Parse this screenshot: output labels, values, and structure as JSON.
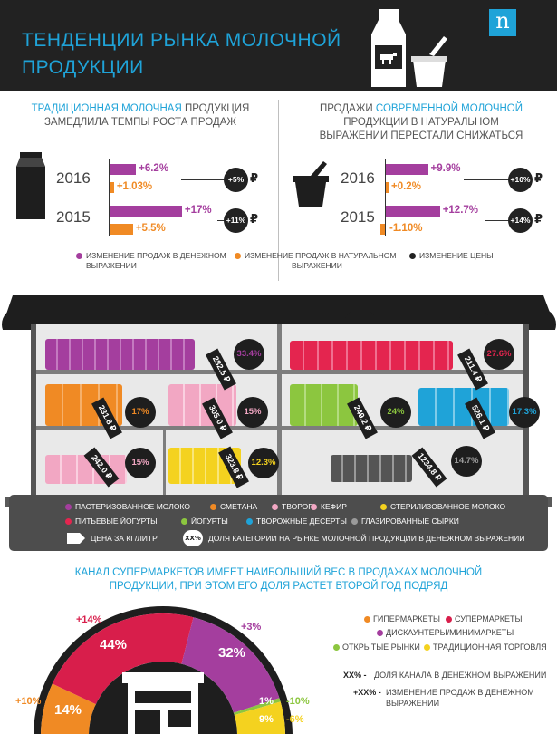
{
  "header": {
    "title_line1": "ТЕНДЕНЦИИ РЫНКА МОЛОЧНОЙ",
    "title_line2": "ПРОДУКЦИИ",
    "logo": "n",
    "colors": {
      "background": "#222222",
      "accent": "#1fa3d8"
    }
  },
  "traditional": {
    "heading_line1_pre": "ТРАДИЦИОННАЯ",
    "heading_line1_hl": "МОЛОЧНАЯ",
    "heading_line1_post": "ПРОДУКЦИЯ",
    "heading_line2": "ЗАМЕДЛИЛА ТЕМПЫ РОСТА ПРОДАЖ",
    "icon": "milk-carton-icon",
    "rows": [
      {
        "year": "2016",
        "value_change": "+6.2%",
        "volume_change": "+1.03%",
        "price_change": "+5%"
      },
      {
        "year": "2015",
        "value_change": "+17%",
        "volume_change": "+5.5%",
        "price_change": "+11%"
      }
    ]
  },
  "modern": {
    "heading_line1_pre": "ПРОДАЖИ",
    "heading_line1_hl": "СОВРЕМЕННОЙ МОЛОЧНОЙ",
    "heading_line2": "ПРОДУКЦИИ В НАТУРАЛЬНОМ",
    "heading_line3": "ВЫРАЖЕНИИ ПЕРЕСТАЛИ СНИЖАТЬСЯ",
    "icon": "yogurt-cup-icon",
    "rows": [
      {
        "year": "2016",
        "value_change": "+9.9%",
        "volume_change": "+0.2%",
        "price_change": "+10%"
      },
      {
        "year": "2015",
        "value_change": "+12.7%",
        "volume_change": "-1.10%",
        "price_change": "+14%"
      }
    ]
  },
  "currency": "₽",
  "legend_top": [
    {
      "label_line1": "ИЗМЕНЕНИЕ ПРОДАЖ В ДЕНЕЖНОМ",
      "label_line2": "ВЫРАЖЕНИИ",
      "color": "#a43e9e"
    },
    {
      "label_line1": "ИЗМЕНЕНИЕ ПРОДАЖ В НАТУРАЛЬНОМ",
      "label_line2": "ВЫРАЖЕНИИ",
      "color": "#f08a24"
    },
    {
      "label_line1": "ИЗМЕНЕНИЕ ЦЕНЫ",
      "label_line2": "",
      "color": "#222222"
    }
  ],
  "store": {
    "categories": [
      {
        "name": "ПАСТЕРИЗОВАННОЕ МОЛОКО",
        "price": "282.5 ₽",
        "share": "33.4%",
        "color": "#a43e9e"
      },
      {
        "name": "ПИТЬЕВЫЕ ЙОГУРТЫ",
        "price": "211.4 ₽",
        "share": "27.6%",
        "color": "#e4254f"
      },
      {
        "name": "СМЕТАНА",
        "price": "231.8 ₽",
        "share": "17%",
        "color": "#f08a24"
      },
      {
        "name": "ТВОРОГ",
        "price": "305.0 ₽",
        "share": "15%",
        "color": "#f2a7c3"
      },
      {
        "name": "ЙОГУРТЫ",
        "price": "249.2 ₽",
        "share": "24%",
        "color": "#8cc63f"
      },
      {
        "name": "ТВОРОЖНЫЕ ДЕСЕРТЫ",
        "price": "526.1 ₽",
        "share": "17.3%",
        "color": "#1fa3d8"
      },
      {
        "name": "КЕФИР",
        "price": "242.0 ₽",
        "share": "15%",
        "color": "#f2a7c3"
      },
      {
        "name": "СТЕРИЛИЗОВАННОЕ МОЛОКО",
        "price": "323.8 ₽",
        "share": "12.3%",
        "color": "#f4d21f"
      },
      {
        "name": "ГЛАЗИРОВАННЫЕ СЫРКИ",
        "price": "1234.8 ₽",
        "share": "14.7%",
        "color": "#9a9a9a"
      }
    ],
    "legend": [
      {
        "label": "ПАСТЕРИЗОВАННОЕ МОЛОКО",
        "color": "#a43e9e"
      },
      {
        "label": "СМЕТАНА",
        "color": "#f08a24"
      },
      {
        "label": "ТВОРОГ",
        "color": "#f2a7c3"
      },
      {
        "label": "КЕФИР",
        "color": "#f2a7c3"
      },
      {
        "label": "СТЕРИЛИЗОВАННОЕ МОЛОКО",
        "color": "#f4d21f"
      },
      {
        "label": "ПИТЬЕВЫЕ ЙОГУРТЫ",
        "color": "#e4254f"
      },
      {
        "label": "ЙОГУРТЫ",
        "color": "#8cc63f"
      },
      {
        "label": "ТВОРОЖНЫЕ ДЕСЕРТЫ",
        "color": "#1fa3d8"
      },
      {
        "label": "ГЛАЗИРОВАННЫЕ СЫРКИ",
        "color": "#9a9a9a"
      }
    ],
    "price_legend": "ЦЕНА ЗА КГ/ЛИТР",
    "share_marker": "XX%",
    "share_legend": "ДОЛЯ КАТЕГОРИИ НА РЫНКЕ МОЛОЧНОЙ ПРОДУКЦИИ В ДЕНЕЖНОМ ВЫРАЖЕНИИ"
  },
  "channels": {
    "heading_line1": "КАНАЛ СУПЕРМАРКЕТОВ ИМЕЕТ НАИБОЛЬШИЙ ВЕС В ПРОДАЖАХ МОЛОЧНОЙ",
    "heading_line2": "ПРОДУКЦИИ, ПРИ ЭТОМ ЕГО ДОЛЯ РАСТЕТ ВТОРОЙ ГОД ПОДРЯД",
    "segments": [
      {
        "name": "ГИПЕРМАРКЕТЫ",
        "share": "14%",
        "change": "+10%",
        "value": 14,
        "color": "#f08a24"
      },
      {
        "name": "СУПЕРМАРКЕТЫ",
        "share": "44%",
        "change": "+14%",
        "value": 44,
        "color": "#d81e4b"
      },
      {
        "name": "ДИСКАУНТЕРЫ/МИНИМАРКЕТЫ",
        "share": "32%",
        "change": "+3%",
        "value": 32,
        "color": "#a43e9e"
      },
      {
        "name": "ОТКРЫТЫЕ РЫНКИ",
        "share": "1%",
        "change": "-10%",
        "value": 1,
        "color": "#8cc63f"
      },
      {
        "name": "ТРАДИЦИОННАЯ ТОРГОВЛЯ",
        "share": "9%",
        "change": "-6%",
        "value": 9,
        "color": "#f4d21f"
      }
    ],
    "key_share_marker": "XX% -",
    "key_share_text": "ДОЛЯ КАНАЛА В ДЕНЕЖНОМ ВЫРАЖЕНИИ",
    "key_change_marker": "+XX% -",
    "key_change_line1": "ИЗМЕНЕНИЕ ПРОДАЖ В ДЕНЕЖНОМ",
    "key_change_line2": "ВЫРАЖЕНИИ"
  }
}
